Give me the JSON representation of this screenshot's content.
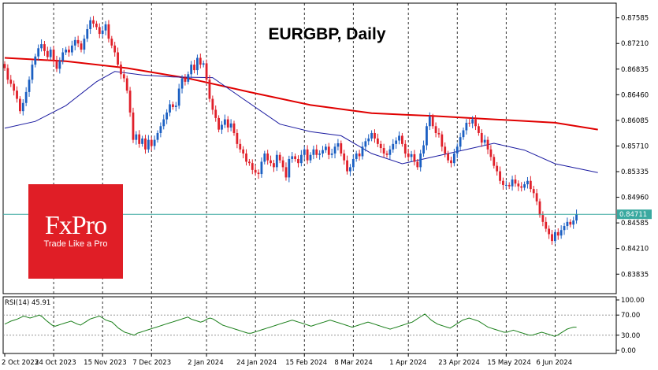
{
  "chart_data": {
    "type": "candlestick",
    "title": "EURGBP, Daily",
    "current_price": "0.84711",
    "price_axis": {
      "ylim": [
        0.8355,
        0.878
      ],
      "ticks": [
        "0.87585",
        "0.87210",
        "0.86835",
        "0.86460",
        "0.86085",
        "0.85710",
        "0.85335",
        "0.84960",
        "0.84585",
        "0.84210",
        "0.83835"
      ],
      "tick_values": [
        0.87585,
        0.8721,
        0.86835,
        0.8646,
        0.86085,
        0.8571,
        0.85335,
        0.8496,
        0.84585,
        0.8421,
        0.83835
      ]
    },
    "x_axis": {
      "labels": [
        "2 Oct 2023",
        "24 Oct 2023",
        "15 Nov 2023",
        "7 Dec 2023",
        "2 Jan 2024",
        "24 Jan 2024",
        "15 Feb 2024",
        "8 Mar 2024",
        "1 Apr 2024",
        "23 Apr 2024",
        "15 May 2024",
        "6 Jun 2024"
      ],
      "label_positions": [
        0,
        16,
        32,
        48,
        66,
        82,
        98,
        114,
        132,
        148,
        164,
        180
      ],
      "dashed_gridlines_at": [
        16,
        32,
        48,
        66,
        82,
        98,
        114,
        132,
        148,
        164,
        180
      ]
    },
    "moving_averages": [
      {
        "color": "#e00000",
        "points": [
          [
            0,
            0.87
          ],
          [
            20,
            0.8695
          ],
          [
            40,
            0.8685
          ],
          [
            60,
            0.867
          ],
          [
            80,
            0.865
          ],
          [
            100,
            0.8631
          ],
          [
            120,
            0.8619
          ],
          [
            140,
            0.8615
          ],
          [
            160,
            0.861
          ],
          [
            180,
            0.8605
          ],
          [
            194,
            0.8595
          ]
        ]
      },
      {
        "color": "#1a1aa0",
        "points": [
          [
            0,
            0.8597
          ],
          [
            10,
            0.8607
          ],
          [
            20,
            0.863
          ],
          [
            30,
            0.8665
          ],
          [
            36,
            0.868
          ],
          [
            45,
            0.8675
          ],
          [
            55,
            0.8672
          ],
          [
            68,
            0.8671
          ],
          [
            78,
            0.864
          ],
          [
            90,
            0.8603
          ],
          [
            100,
            0.8592
          ],
          [
            110,
            0.8586
          ],
          [
            120,
            0.856
          ],
          [
            130,
            0.8545
          ],
          [
            140,
            0.8555
          ],
          [
            150,
            0.8565
          ],
          [
            160,
            0.8575
          ],
          [
            170,
            0.8565
          ],
          [
            180,
            0.8545
          ],
          [
            194,
            0.8532
          ]
        ]
      }
    ],
    "close_prices": [
      0.8685,
      0.8668,
      0.8662,
      0.8652,
      0.864,
      0.8622,
      0.8634,
      0.865,
      0.8668,
      0.869,
      0.8702,
      0.8714,
      0.872,
      0.871,
      0.8701,
      0.8712,
      0.8696,
      0.8684,
      0.8696,
      0.8708,
      0.8712,
      0.8708,
      0.8718,
      0.8726,
      0.8721,
      0.8712,
      0.8728,
      0.8742,
      0.8755,
      0.875,
      0.8745,
      0.8735,
      0.874,
      0.8749,
      0.8728,
      0.8718,
      0.8708,
      0.869,
      0.8676,
      0.867,
      0.8652,
      0.862,
      0.858,
      0.8588,
      0.8574,
      0.8582,
      0.8566,
      0.858,
      0.8571,
      0.858,
      0.859,
      0.86,
      0.861,
      0.862,
      0.8632,
      0.8628,
      0.863,
      0.8655,
      0.867,
      0.8665,
      0.8676,
      0.869,
      0.8682,
      0.87,
      0.869,
      0.8692,
      0.8668,
      0.864,
      0.8624,
      0.8612,
      0.8595,
      0.8602,
      0.861,
      0.8598,
      0.8604,
      0.859,
      0.8574,
      0.8566,
      0.856,
      0.8548,
      0.8546,
      0.8536,
      0.8532,
      0.853,
      0.8548,
      0.856,
      0.855,
      0.8546,
      0.854,
      0.8558,
      0.855,
      0.854,
      0.8525,
      0.8552,
      0.8556,
      0.8552,
      0.8546,
      0.8558,
      0.8566,
      0.855,
      0.8558,
      0.8566,
      0.8558,
      0.856,
      0.8565,
      0.857,
      0.8558,
      0.856,
      0.857,
      0.8575,
      0.856,
      0.855,
      0.8534,
      0.854,
      0.8552,
      0.856,
      0.8556,
      0.857,
      0.8578,
      0.8582,
      0.859,
      0.8582,
      0.8574,
      0.8568,
      0.856,
      0.8558,
      0.8566,
      0.8574,
      0.8579,
      0.8586,
      0.8574,
      0.856,
      0.8555,
      0.8559,
      0.8548,
      0.854,
      0.856,
      0.8572,
      0.86,
      0.8614,
      0.86,
      0.859,
      0.8588,
      0.857,
      0.856,
      0.855,
      0.8546,
      0.856,
      0.857,
      0.8584,
      0.8594,
      0.8605,
      0.8604,
      0.861,
      0.86,
      0.859,
      0.8576,
      0.858,
      0.8566,
      0.8555,
      0.8542,
      0.8534,
      0.852,
      0.8514,
      0.8514,
      0.8512,
      0.8522,
      0.8516,
      0.8512,
      0.851,
      0.8515,
      0.852,
      0.8508,
      0.8502,
      0.849,
      0.847,
      0.846,
      0.845,
      0.8442,
      0.8432,
      0.8445,
      0.844,
      0.8448,
      0.8454,
      0.846,
      0.8456,
      0.8462,
      0.8471
    ],
    "rsi": {
      "label": "RSI(14) 45.91",
      "ticks": [
        "100.00",
        "70.00",
        "30.00",
        "0.00"
      ],
      "tick_values": [
        100,
        70,
        30,
        0
      ],
      "line_color": "#1a7f1a",
      "values": [
        52,
        55,
        58,
        60,
        62,
        65,
        68,
        66,
        64,
        66,
        68,
        70,
        66,
        60,
        55,
        50,
        48,
        50,
        52,
        54,
        56,
        58,
        55,
        52,
        50,
        54,
        58,
        62,
        64,
        66,
        68,
        64,
        60,
        58,
        56,
        50,
        44,
        40,
        36,
        34,
        32,
        30,
        34,
        36,
        38,
        40,
        42,
        44,
        46,
        48,
        50,
        52,
        54,
        56,
        58,
        60,
        62,
        64,
        66,
        62,
        60,
        58,
        56,
        58,
        62,
        64,
        62,
        58,
        54,
        50,
        48,
        46,
        44,
        42,
        40,
        38,
        36,
        34,
        34,
        36,
        38,
        40,
        42,
        44,
        46,
        48,
        50,
        52,
        54,
        56,
        58,
        60,
        58,
        56,
        54,
        52,
        50,
        48,
        50,
        52,
        54,
        56,
        58,
        60,
        58,
        56,
        54,
        52,
        50,
        48,
        46,
        48,
        50,
        52,
        54,
        56,
        54,
        52,
        50,
        48,
        46,
        44,
        42,
        44,
        46,
        48,
        50,
        52,
        54,
        56,
        60,
        64,
        68,
        72,
        66,
        60,
        56,
        52,
        50,
        48,
        46,
        44,
        48,
        52,
        56,
        60,
        62,
        64,
        62,
        60,
        58,
        54,
        50,
        46,
        44,
        42,
        40,
        38,
        36,
        36,
        38,
        40,
        38,
        36,
        34,
        32,
        30,
        30,
        32,
        34,
        36,
        34,
        32,
        30,
        28,
        30,
        34,
        38,
        42,
        44,
        46,
        45.91
      ]
    }
  },
  "logo": {
    "name": "FxPro",
    "tagline": "Trade Like a Pro"
  },
  "colors": {
    "bull_candle": "#1b5fc2",
    "bear_candle": "#e0202a",
    "price_line": "#3aa9a0",
    "grid": "#000000",
    "brand": "#e01e26"
  }
}
